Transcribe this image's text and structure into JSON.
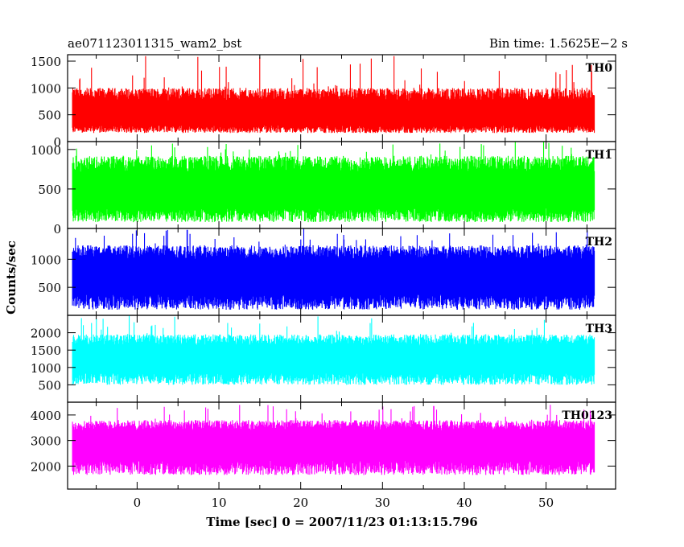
{
  "chart_data": {
    "type": "line",
    "title_left": "ae071123011315_wam2_bst",
    "title_right": "Bin time: 1.5625E−2 s",
    "xlabel": "Time [sec] 0 = 2007/11/23 01:13:15.796",
    "ylabel": "Counts/sec",
    "xlim": [
      -8.5,
      58.5
    ],
    "x_data_range": [
      -7.9,
      55.9
    ],
    "x_ticks": [
      0,
      10,
      20,
      30,
      40,
      50
    ],
    "x_tick_labels": [
      "0",
      "10",
      "20",
      "30",
      "40",
      "50"
    ],
    "grid": false,
    "panels": [
      {
        "name": "TH0",
        "color": "#ff0000",
        "ylim": [
          0,
          1620
        ],
        "y_ticks": [
          0,
          500,
          1000,
          1500
        ],
        "y_tick_labels": [
          "0",
          "500",
          "1000",
          "1500"
        ],
        "baseline": 480,
        "low": 160,
        "high": 1000,
        "peak": 1620,
        "dips": []
      },
      {
        "name": "TH1",
        "color": "#00ff00",
        "ylim": [
          0,
          1100
        ],
        "y_ticks": [
          0,
          500,
          1000
        ],
        "y_tick_labels": [
          "0",
          "500",
          "1000"
        ],
        "baseline": 470,
        "low": 80,
        "high": 920,
        "peak": 1100,
        "dips": []
      },
      {
        "name": "TH2",
        "color": "#0000ff",
        "ylim": [
          0,
          1550
        ],
        "y_ticks": [
          500,
          1000
        ],
        "y_tick_labels": [
          "500",
          "1000"
        ],
        "baseline": 700,
        "low": 100,
        "high": 1250,
        "peak": 1550,
        "dips": [
          {
            "x": 42.5,
            "value": 330
          }
        ]
      },
      {
        "name": "TH3",
        "color": "#00ffff",
        "ylim": [
          0,
          2500
        ],
        "y_ticks": [
          500,
          1000,
          1500,
          2000
        ],
        "y_tick_labels": [
          "500",
          "1000",
          "1500",
          "2000"
        ],
        "baseline": 1250,
        "low": 500,
        "high": 1950,
        "peak": 2500,
        "dips": [
          {
            "x": 42.6,
            "value": 900
          }
        ]
      },
      {
        "name": "TH0123",
        "color": "#ff00ff",
        "ylim": [
          1100,
          4500
        ],
        "y_ticks": [
          2000,
          3000,
          4000
        ],
        "y_tick_labels": [
          "2000",
          "3000",
          "4000"
        ],
        "baseline": 2900,
        "low": 1650,
        "high": 3800,
        "peak": 4400,
        "dips": [
          {
            "x": 42.6,
            "value": 2300
          }
        ]
      }
    ]
  }
}
